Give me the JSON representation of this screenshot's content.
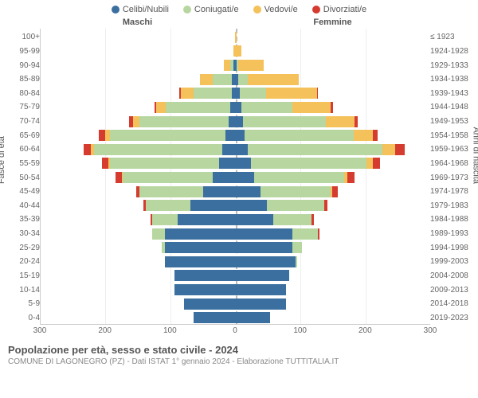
{
  "chart": {
    "type": "population-pyramid",
    "legend": [
      {
        "label": "Celibi/Nubili",
        "color": "#3b6fa0"
      },
      {
        "label": "Coniugati/e",
        "color": "#b7d6a0"
      },
      {
        "label": "Vedovi/e",
        "color": "#f4c15a"
      },
      {
        "label": "Divorziati/e",
        "color": "#d53c2f"
      }
    ],
    "header_male": "Maschi",
    "header_female": "Femmine",
    "y_left_title": "Fasce di età",
    "y_right_title": "Anni di nascita",
    "x_max": 300,
    "x_ticks": [
      300,
      200,
      100,
      0,
      100,
      200,
      300
    ],
    "background_color": "#ffffff",
    "grid_color": "#eeeeee",
    "axis_color": "#cccccc",
    "bar_height_ratio": 0.8,
    "rows": [
      {
        "age": "100+",
        "year": "≤ 1923",
        "m": {
          "c": 0,
          "co": 0,
          "v": 0,
          "d": 0
        },
        "f": {
          "c": 0,
          "co": 0,
          "v": 2,
          "d": 0
        }
      },
      {
        "age": "95-99",
        "year": "1924-1928",
        "m": {
          "c": 0,
          "co": 0,
          "v": 2,
          "d": 0
        },
        "f": {
          "c": 0,
          "co": 0,
          "v": 10,
          "d": 0
        }
      },
      {
        "age": "90-94",
        "year": "1929-1933",
        "m": {
          "c": 2,
          "co": 5,
          "v": 10,
          "d": 0
        },
        "f": {
          "c": 2,
          "co": 3,
          "v": 40,
          "d": 0
        }
      },
      {
        "age": "85-89",
        "year": "1934-1938",
        "m": {
          "c": 5,
          "co": 30,
          "v": 20,
          "d": 0
        },
        "f": {
          "c": 5,
          "co": 15,
          "v": 80,
          "d": 0
        }
      },
      {
        "age": "80-84",
        "year": "1939-1943",
        "m": {
          "c": 5,
          "co": 60,
          "v": 20,
          "d": 2
        },
        "f": {
          "c": 8,
          "co": 40,
          "v": 80,
          "d": 2
        }
      },
      {
        "age": "75-79",
        "year": "1944-1948",
        "m": {
          "c": 8,
          "co": 100,
          "v": 15,
          "d": 3
        },
        "f": {
          "c": 10,
          "co": 80,
          "v": 60,
          "d": 3
        }
      },
      {
        "age": "70-74",
        "year": "1949-1953",
        "m": {
          "c": 10,
          "co": 140,
          "v": 10,
          "d": 5
        },
        "f": {
          "c": 12,
          "co": 130,
          "v": 45,
          "d": 5
        }
      },
      {
        "age": "65-69",
        "year": "1954-1958",
        "m": {
          "c": 15,
          "co": 180,
          "v": 8,
          "d": 10
        },
        "f": {
          "c": 15,
          "co": 170,
          "v": 30,
          "d": 8
        }
      },
      {
        "age": "60-64",
        "year": "1959-1963",
        "m": {
          "c": 20,
          "co": 200,
          "v": 5,
          "d": 12
        },
        "f": {
          "c": 20,
          "co": 210,
          "v": 20,
          "d": 15
        }
      },
      {
        "age": "55-59",
        "year": "1964-1968",
        "m": {
          "c": 25,
          "co": 170,
          "v": 3,
          "d": 10
        },
        "f": {
          "c": 25,
          "co": 180,
          "v": 10,
          "d": 12
        }
      },
      {
        "age": "50-54",
        "year": "1969-1973",
        "m": {
          "c": 35,
          "co": 140,
          "v": 2,
          "d": 10
        },
        "f": {
          "c": 30,
          "co": 140,
          "v": 5,
          "d": 12
        }
      },
      {
        "age": "45-49",
        "year": "1974-1978",
        "m": {
          "c": 50,
          "co": 100,
          "v": 0,
          "d": 5
        },
        "f": {
          "c": 40,
          "co": 110,
          "v": 2,
          "d": 8
        }
      },
      {
        "age": "40-44",
        "year": "1979-1983",
        "m": {
          "c": 70,
          "co": 70,
          "v": 0,
          "d": 3
        },
        "f": {
          "c": 50,
          "co": 90,
          "v": 0,
          "d": 5
        }
      },
      {
        "age": "35-39",
        "year": "1984-1988",
        "m": {
          "c": 90,
          "co": 40,
          "v": 0,
          "d": 2
        },
        "f": {
          "c": 60,
          "co": 60,
          "v": 0,
          "d": 3
        }
      },
      {
        "age": "30-34",
        "year": "1989-1993",
        "m": {
          "c": 110,
          "co": 20,
          "v": 0,
          "d": 0
        },
        "f": {
          "c": 90,
          "co": 40,
          "v": 0,
          "d": 2
        }
      },
      {
        "age": "25-29",
        "year": "1994-1998",
        "m": {
          "c": 110,
          "co": 5,
          "v": 0,
          "d": 0
        },
        "f": {
          "c": 90,
          "co": 15,
          "v": 0,
          "d": 0
        }
      },
      {
        "age": "20-24",
        "year": "1999-2003",
        "m": {
          "c": 110,
          "co": 0,
          "v": 0,
          "d": 0
        },
        "f": {
          "c": 95,
          "co": 2,
          "v": 0,
          "d": 0
        }
      },
      {
        "age": "15-19",
        "year": "2004-2008",
        "m": {
          "c": 95,
          "co": 0,
          "v": 0,
          "d": 0
        },
        "f": {
          "c": 85,
          "co": 0,
          "v": 0,
          "d": 0
        }
      },
      {
        "age": "10-14",
        "year": "2009-2013",
        "m": {
          "c": 95,
          "co": 0,
          "v": 0,
          "d": 0
        },
        "f": {
          "c": 80,
          "co": 0,
          "v": 0,
          "d": 0
        }
      },
      {
        "age": "5-9",
        "year": "2014-2018",
        "m": {
          "c": 80,
          "co": 0,
          "v": 0,
          "d": 0
        },
        "f": {
          "c": 80,
          "co": 0,
          "v": 0,
          "d": 0
        }
      },
      {
        "age": "0-4",
        "year": "2019-2023",
        "m": {
          "c": 65,
          "co": 0,
          "v": 0,
          "d": 0
        },
        "f": {
          "c": 55,
          "co": 0,
          "v": 0,
          "d": 0
        }
      }
    ]
  },
  "footer": {
    "title": "Popolazione per età, sesso e stato civile - 2024",
    "subtitle": "COMUNE DI LAGONEGRO (PZ) - Dati ISTAT 1° gennaio 2024 - Elaborazione TUTTITALIA.IT"
  }
}
